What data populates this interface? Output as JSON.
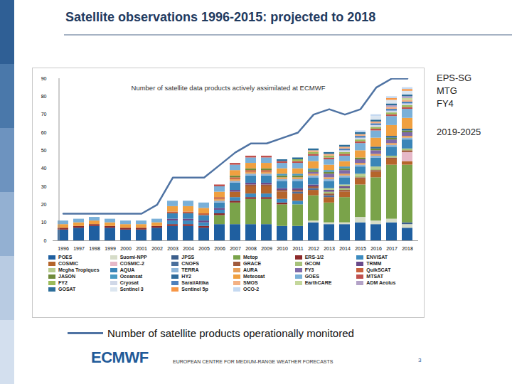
{
  "chart_data": {
    "type": "bar",
    "stacked": true,
    "grid": false,
    "title": "Satellite observations 1996-2015: projected to 2018",
    "subtitle": "Number of satellite data products actively assimilated at ECMWF",
    "annotations": [
      "EPS-SG",
      "MTG",
      "FY4",
      "2019-2025"
    ],
    "categories": [
      "1996",
      "1997",
      "1998",
      "1999",
      "2000",
      "2001",
      "2002",
      "2003",
      "2004",
      "2005",
      "2006",
      "2007",
      "2008",
      "2009",
      "2010",
      "2011",
      "2012",
      "2013",
      "2014",
      "2015",
      "2016",
      "2017",
      "2018"
    ],
    "ylim": [
      0,
      90
    ],
    "yticks": [
      0,
      10,
      20,
      30,
      40,
      50,
      60,
      70,
      80,
      90
    ],
    "series": [
      {
        "name": "POES",
        "color": "#1f5fa0",
        "values": [
          6,
          7,
          8,
          7,
          6,
          6,
          7,
          8,
          8,
          7,
          9,
          9,
          9,
          9,
          8,
          8,
          10,
          9,
          9,
          10,
          9,
          10,
          7
        ]
      },
      {
        "name": "Suomi-NPP",
        "color": "#d6dcc8",
        "values": [
          0,
          0,
          0,
          0,
          0,
          0,
          0,
          0,
          0,
          0,
          0,
          0,
          0,
          0,
          0,
          0,
          1,
          1,
          1,
          3,
          2,
          2,
          2
        ]
      },
      {
        "name": "JPSS",
        "color": "#3c5f8c",
        "values": [
          0,
          0,
          0,
          0,
          0,
          0,
          0,
          0,
          0,
          0,
          0,
          0,
          0,
          0,
          0,
          0,
          0,
          0,
          0,
          0,
          0,
          0,
          1
        ]
      },
      {
        "name": "Metop",
        "color": "#7aa34a",
        "values": [
          0,
          0,
          0,
          0,
          0,
          0,
          0,
          0,
          0,
          0,
          5,
          12,
          14,
          14,
          12,
          12,
          14,
          11,
          14,
          18,
          24,
          30,
          32
        ]
      },
      {
        "name": "ERS-1/2",
        "color": "#8c2a2a",
        "values": [
          1,
          1,
          1,
          1,
          1,
          1,
          1,
          1,
          1,
          1,
          1,
          1,
          1,
          1,
          1,
          0,
          0,
          0,
          0,
          0,
          0,
          0,
          0
        ]
      },
      {
        "name": "ENVISAT",
        "color": "#3d8bbf",
        "values": [
          0,
          0,
          0,
          0,
          0,
          0,
          0,
          2,
          2,
          2,
          2,
          2,
          2,
          2,
          2,
          2,
          0,
          0,
          0,
          0,
          0,
          0,
          0
        ]
      },
      {
        "name": "COSMIC",
        "color": "#b5652b",
        "values": [
          0,
          0,
          0,
          0,
          0,
          0,
          0,
          0,
          0,
          0,
          0,
          3,
          4,
          4,
          4,
          4,
          3,
          3,
          3,
          3,
          3,
          3,
          2
        ]
      },
      {
        "name": "COSMIC-2",
        "color": "#e6b8c8",
        "values": [
          0,
          0,
          0,
          0,
          0,
          0,
          0,
          0,
          0,
          0,
          0,
          0,
          0,
          0,
          0,
          0,
          0,
          0,
          0,
          0,
          0,
          0,
          5
        ]
      },
      {
        "name": "CNOFS",
        "color": "#4a6f9c",
        "values": [
          0,
          0,
          0,
          0,
          0,
          0,
          0,
          0,
          0,
          0,
          0,
          0,
          0,
          0,
          0,
          1,
          1,
          1,
          0,
          0,
          0,
          0,
          0
        ]
      },
      {
        "name": "GRACE",
        "color": "#a05a3c",
        "values": [
          0,
          0,
          0,
          0,
          0,
          0,
          0,
          0,
          0,
          0,
          0,
          0,
          1,
          1,
          1,
          1,
          1,
          1,
          1,
          1,
          1,
          1,
          1
        ]
      },
      {
        "name": "GCOM",
        "color": "#a7c27a",
        "values": [
          0,
          0,
          0,
          0,
          0,
          0,
          0,
          0,
          0,
          0,
          0,
          0,
          0,
          0,
          0,
          0,
          0,
          1,
          1,
          1,
          1,
          1,
          1
        ]
      },
      {
        "name": "TRMM",
        "color": "#6a4a8a",
        "values": [
          0,
          0,
          0,
          0,
          0,
          0,
          0,
          1,
          1,
          1,
          1,
          1,
          1,
          1,
          1,
          1,
          1,
          1,
          1,
          0,
          0,
          0,
          0
        ]
      },
      {
        "name": "Megha Tropiques",
        "color": "#b7cc8e",
        "values": [
          0,
          0,
          0,
          0,
          0,
          0,
          0,
          0,
          0,
          0,
          0,
          0,
          0,
          0,
          0,
          0,
          0,
          1,
          1,
          1,
          1,
          0,
          0
        ]
      },
      {
        "name": "AQUA",
        "color": "#3a85b8",
        "values": [
          0,
          0,
          0,
          0,
          0,
          0,
          0,
          3,
          3,
          3,
          3,
          4,
          4,
          4,
          4,
          4,
          4,
          4,
          4,
          4,
          5,
          5,
          5
        ]
      },
      {
        "name": "TERRA",
        "color": "#8fb6d9",
        "values": [
          0,
          0,
          0,
          0,
          0,
          0,
          0,
          0,
          0,
          0,
          1,
          1,
          1,
          1,
          1,
          1,
          1,
          1,
          1,
          1,
          1,
          1,
          1
        ]
      },
      {
        "name": "AURA",
        "color": "#e8a05a",
        "values": [
          0,
          0,
          0,
          0,
          0,
          0,
          0,
          0,
          0,
          0,
          1,
          1,
          1,
          1,
          1,
          1,
          1,
          1,
          1,
          1,
          1,
          1,
          1
        ]
      },
      {
        "name": "FY3",
        "color": "#7f6aa8",
        "values": [
          0,
          0,
          0,
          0,
          0,
          0,
          0,
          0,
          0,
          0,
          0,
          0,
          0,
          0,
          0,
          0,
          1,
          2,
          2,
          2,
          2,
          2,
          2
        ]
      },
      {
        "name": "QuikSCAT",
        "color": "#c9613d",
        "values": [
          0,
          0,
          0,
          0,
          0,
          0,
          0,
          1,
          1,
          1,
          1,
          1,
          1,
          1,
          0,
          0,
          0,
          0,
          0,
          0,
          0,
          0,
          0
        ]
      },
      {
        "name": "JASON",
        "color": "#6f8a3a",
        "values": [
          0,
          0,
          0,
          0,
          0,
          0,
          0,
          0,
          0,
          0,
          0,
          1,
          1,
          1,
          1,
          1,
          1,
          1,
          1,
          1,
          1,
          1,
          1
        ]
      },
      {
        "name": "Oceansat",
        "color": "#4a9bc4",
        "values": [
          0,
          0,
          0,
          0,
          0,
          0,
          0,
          0,
          0,
          0,
          0,
          0,
          0,
          0,
          1,
          1,
          1,
          1,
          1,
          0,
          0,
          0,
          0
        ]
      },
      {
        "name": "HY2",
        "color": "#2f6a9a",
        "values": [
          0,
          0,
          0,
          0,
          0,
          0,
          0,
          0,
          0,
          0,
          0,
          0,
          0,
          0,
          0,
          0,
          0,
          0,
          0,
          0,
          1,
          1,
          1
        ]
      },
      {
        "name": "Meteosat",
        "color": "#f0a040",
        "values": [
          2,
          2,
          2,
          2,
          2,
          2,
          2,
          3,
          3,
          3,
          3,
          3,
          3,
          3,
          3,
          3,
          4,
          3,
          3,
          4,
          5,
          6,
          6
        ]
      },
      {
        "name": "GOES",
        "color": "#7ab0d8",
        "values": [
          2,
          2,
          2,
          2,
          2,
          2,
          2,
          3,
          3,
          3,
          3,
          3,
          3,
          3,
          3,
          3,
          3,
          3,
          3,
          4,
          4,
          5,
          5
        ]
      },
      {
        "name": "MTSAT",
        "color": "#c0504d",
        "values": [
          0,
          0,
          0,
          0,
          0,
          0,
          0,
          0,
          0,
          0,
          1,
          1,
          1,
          1,
          1,
          1,
          1,
          1,
          1,
          1,
          1,
          1,
          1
        ]
      },
      {
        "name": "FY2",
        "color": "#9bbb59",
        "values": [
          0,
          0,
          0,
          0,
          0,
          0,
          0,
          0,
          0,
          0,
          0,
          0,
          0,
          0,
          0,
          1,
          1,
          1,
          1,
          1,
          1,
          1,
          1
        ]
      },
      {
        "name": "Cryosat",
        "color": "#d0d8e8",
        "values": [
          0,
          0,
          0,
          0,
          0,
          0,
          0,
          0,
          0,
          0,
          0,
          0,
          0,
          0,
          0,
          0,
          0,
          0,
          1,
          1,
          1,
          1,
          1
        ]
      },
      {
        "name": "Saral/Altika",
        "color": "#4f81bd",
        "values": [
          0,
          0,
          0,
          0,
          0,
          0,
          0,
          0,
          0,
          0,
          0,
          0,
          0,
          0,
          0,
          0,
          0,
          0,
          1,
          1,
          1,
          1,
          1
        ]
      },
      {
        "name": "SMOS",
        "color": "#f4b183",
        "values": [
          0,
          0,
          0,
          0,
          0,
          0,
          0,
          0,
          0,
          0,
          0,
          0,
          0,
          0,
          0,
          0,
          1,
          1,
          1,
          1,
          1,
          1,
          1
        ]
      },
      {
        "name": "EarthCARE",
        "color": "#c4d79b",
        "values": [
          0,
          0,
          0,
          0,
          0,
          0,
          0,
          0,
          0,
          0,
          0,
          0,
          0,
          0,
          0,
          0,
          0,
          0,
          0,
          0,
          0,
          0,
          1
        ]
      },
      {
        "name": "ADM Aeolus",
        "color": "#b3a2c7",
        "values": [
          0,
          0,
          0,
          0,
          0,
          0,
          0,
          0,
          0,
          0,
          0,
          0,
          0,
          0,
          0,
          0,
          0,
          0,
          0,
          0,
          0,
          1,
          1
        ]
      },
      {
        "name": "GOSAT",
        "color": "#2c6e9a",
        "values": [
          0,
          0,
          0,
          0,
          0,
          0,
          0,
          0,
          0,
          0,
          0,
          0,
          0,
          0,
          1,
          1,
          1,
          1,
          1,
          1,
          1,
          1,
          1
        ]
      },
      {
        "name": "Sentinel 3",
        "color": "#dce6f0",
        "values": [
          0,
          0,
          0,
          0,
          0,
          0,
          0,
          0,
          0,
          0,
          0,
          0,
          0,
          0,
          0,
          0,
          0,
          0,
          0,
          0,
          2,
          2,
          2
        ]
      },
      {
        "name": "Sentinel 5p",
        "color": "#f79646",
        "values": [
          0,
          0,
          0,
          0,
          0,
          0,
          0,
          0,
          0,
          0,
          0,
          0,
          0,
          0,
          0,
          0,
          0,
          0,
          0,
          0,
          0,
          1,
          1
        ]
      },
      {
        "name": "OCO-2",
        "color": "#c5d9f1",
        "values": [
          0,
          0,
          0,
          0,
          0,
          0,
          0,
          0,
          0,
          0,
          0,
          0,
          0,
          0,
          0,
          0,
          0,
          0,
          0,
          1,
          1,
          1,
          1
        ]
      },
      {
        "name": "Number of satellite products operationally monitored",
        "type": "line",
        "color": "#4f73a3",
        "values": [
          15,
          15,
          15,
          15,
          15,
          15,
          20,
          35,
          35,
          35,
          42,
          49,
          54,
          54,
          57,
          60,
          70,
          73,
          70,
          73,
          85,
          90,
          90
        ]
      }
    ]
  },
  "slide": {
    "logo": "ECMWF",
    "organization": "EUROPEAN CENTRE FOR MEDIUM-RANGE WEATHER FORECASTS",
    "page": 3
  }
}
